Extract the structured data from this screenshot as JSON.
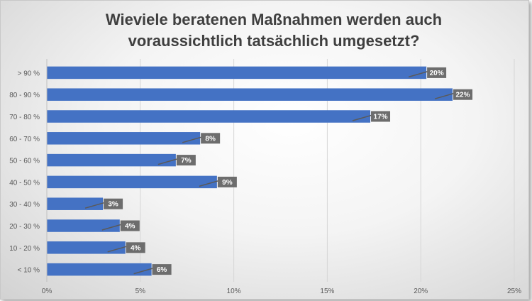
{
  "chart_data": {
    "type": "bar",
    "orientation": "horizontal",
    "title": "Wieviele beratenen Maßnahmen werden auch voraussichtlich tatsächlich umgesetzt?",
    "title_lines": [
      "Wieviele beratenen Maßnahmen werden auch",
      "voraussichtlich tatsächlich umgesetzt?"
    ],
    "categories": [
      "> 90 %",
      "80 - 90 %",
      "70 - 80 %",
      "60 - 70 %",
      "50 - 60 %",
      "40 - 50 %",
      "30 - 40 %",
      "20 - 30 %",
      "10 - 20 %",
      "< 10 %"
    ],
    "values": [
      20.3,
      21.7,
      17.3,
      8.2,
      6.9,
      9.1,
      3.0,
      3.9,
      4.2,
      5.6
    ],
    "data_labels": [
      "20%",
      "22%",
      "17%",
      "8%",
      "7%",
      "9%",
      "3%",
      "4%",
      "4%",
      "6%"
    ],
    "x_ticks": [
      "0%",
      "5%",
      "10%",
      "15%",
      "20%",
      "25%"
    ],
    "xlim": [
      0,
      25
    ],
    "xlabel": "",
    "ylabel": "",
    "grid": true,
    "colors": {
      "bar": "#4472c4",
      "label_bg": "#6d6d6d",
      "grid": "#d6d6d6"
    }
  }
}
